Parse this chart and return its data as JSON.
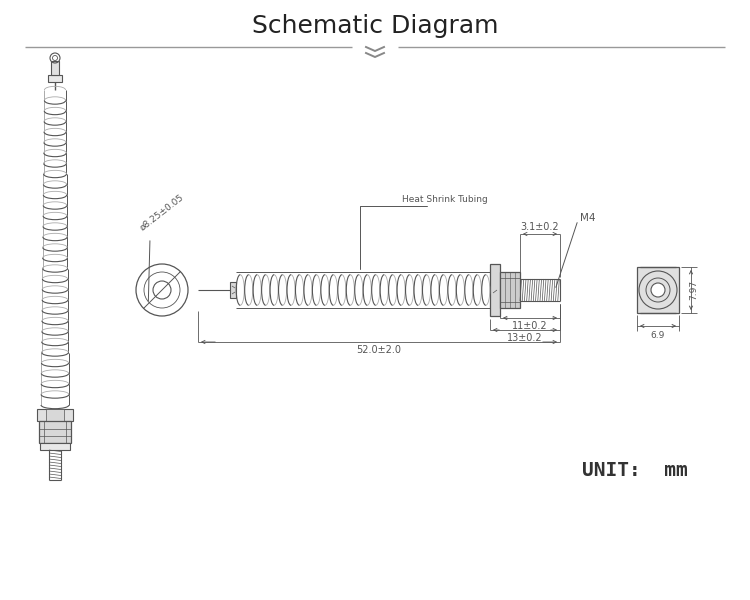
{
  "title": "Schematic Diagram",
  "bg_color": "#ffffff",
  "line_color": "#555555",
  "title_fontsize": 18,
  "unit_text": "UNIT:  mm",
  "annotations": {
    "diameter": "ø8.25±0.05",
    "heat_shrink": "Heat Shrink Tubing",
    "dim_52": "52.0±2.0",
    "dim_13": "13±0.2",
    "dim_11": "11±0.2",
    "dim_31": "3.1±0.2",
    "m4": "M4",
    "dim_797": "7.97",
    "dim_69": "6.9"
  }
}
